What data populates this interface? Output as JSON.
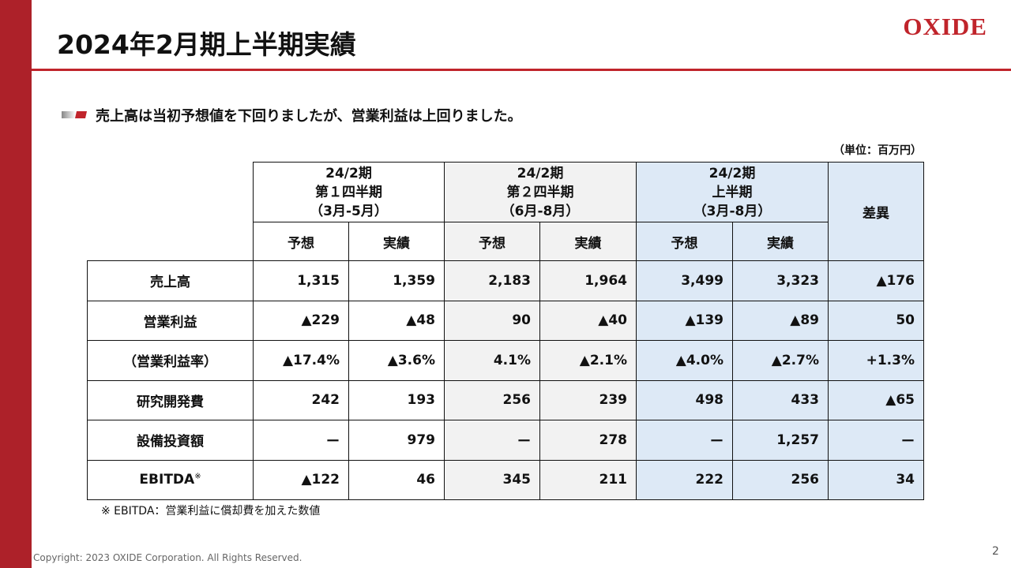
{
  "header": {
    "title": "2024年2月期上半期実績",
    "logo": "OXIDE"
  },
  "bullet": "売上高は当初予想値を下回りましたが、営業利益は上回りました。",
  "unit": "（単位：百万円）",
  "table": {
    "groups": [
      {
        "lines": [
          "24/2期",
          "第１四半期",
          "（3月-5月）"
        ]
      },
      {
        "lines": [
          "24/2期",
          "第２四半期",
          "（6月-8月）"
        ]
      },
      {
        "lines": [
          "24/2期",
          "上半期",
          "（3月-8月）"
        ]
      }
    ],
    "diff_header": "差異",
    "subheaders": [
      "予想",
      "実績",
      "予想",
      "実績",
      "予想",
      "実績"
    ],
    "rows": [
      {
        "label": "売上高",
        "cells": [
          "1,315",
          "1,359",
          "2,183",
          "1,964",
          "3,499",
          "3,323",
          "▲176"
        ]
      },
      {
        "label": "営業利益",
        "cells": [
          "▲229",
          "▲48",
          "90",
          "▲40",
          "▲139",
          "▲89",
          "50"
        ]
      },
      {
        "label": "（営業利益率）",
        "cells": [
          "▲17.4%",
          "▲3.6%",
          "4.1%",
          "▲2.1%",
          "▲4.0%",
          "▲2.7%",
          "+1.3%"
        ]
      },
      {
        "label": "研究開発費",
        "cells": [
          "242",
          "193",
          "256",
          "239",
          "498",
          "433",
          "▲65"
        ]
      },
      {
        "label": "設備投資額",
        "cells": [
          "ー",
          "979",
          "ー",
          "278",
          "ー",
          "1,257",
          "ー"
        ]
      },
      {
        "label": "EBITDA",
        "note": "※",
        "cells": [
          "▲122",
          "46",
          "345",
          "211",
          "222",
          "256",
          "34"
        ]
      }
    ]
  },
  "footnote": "※ EBITDA：営業利益に償却費を加えた数値",
  "footer": {
    "copyright": "Copyright: 2023 OXIDE Corporation. All Rights Reserved.",
    "page": "2"
  }
}
